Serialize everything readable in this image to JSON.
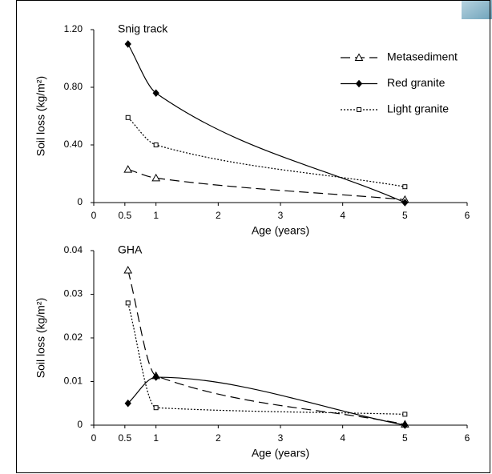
{
  "chart_data": [
    {
      "type": "line",
      "title": "Snig track",
      "x_label": "Age (years)",
      "y_label": "Soil loss (kg/m²)",
      "x": [
        0.55,
        1,
        5
      ],
      "series": [
        {
          "name": "Metasediment",
          "color": "#000000",
          "dash": "12,6",
          "marker": "triangle",
          "values": [
            0.23,
            0.17,
            0.02
          ]
        },
        {
          "name": "Red granite",
          "color": "#000000",
          "dash": "none",
          "marker": "diamond",
          "values": [
            1.1,
            0.76,
            0
          ]
        },
        {
          "name": "Light granite",
          "color": "#000000",
          "dash": "2,2",
          "marker": "square",
          "values": [
            0.59,
            0.4,
            0.11
          ]
        }
      ],
      "xlim": [
        0,
        6
      ],
      "xticks": [
        0,
        0.5,
        1,
        2,
        3,
        4,
        5,
        6
      ],
      "ylim": [
        0,
        1.2
      ],
      "yticks": [
        0,
        {
          "value": 0.4,
          "label": "0.40"
        },
        {
          "value": 0.8,
          "label": "0.80"
        },
        {
          "value": 1.2,
          "label": "1.20"
        }
      ],
      "legend": "upper right"
    },
    {
      "type": "line",
      "title": "GHA",
      "x_label": "Age (years)",
      "y_label": "Soil loss (kg/m²)",
      "x": [
        0.55,
        1,
        5
      ],
      "series": [
        {
          "color": "#000000",
          "dash": "12,6",
          "marker": "triangle",
          "values": [
            0.0355,
            0.0113,
            0.0002
          ]
        },
        {
          "color": "#000000",
          "dash": "none",
          "marker": "diamond",
          "values": [
            0.005,
            0.011,
            0
          ]
        },
        {
          "color": "#000000",
          "dash": "2,2",
          "marker": "square",
          "values": [
            0.028,
            0.004,
            0.0025
          ]
        }
      ],
      "xlim": [
        0,
        6
      ],
      "xticks": [
        0,
        0.5,
        1,
        2,
        3,
        4,
        5,
        6
      ],
      "ylim": [
        0,
        0.04
      ],
      "yticks": [
        0,
        0.01,
        0.02,
        0.03,
        0.04
      ]
    }
  ]
}
